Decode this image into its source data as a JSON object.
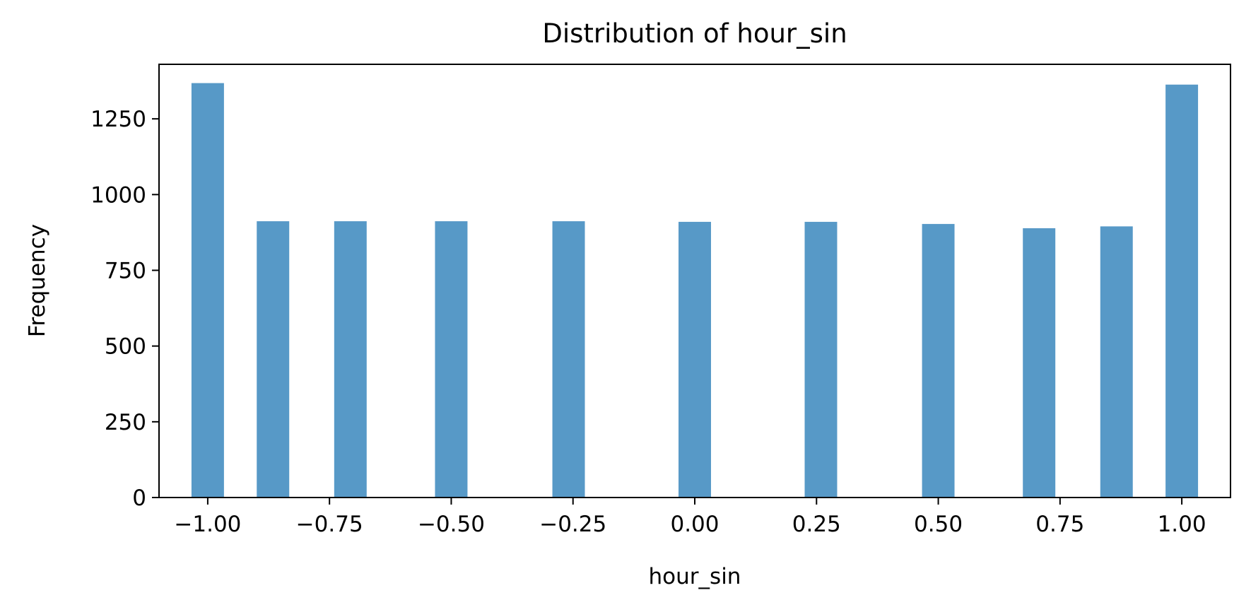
{
  "chart_data": {
    "type": "bar",
    "title": "Distribution of hour_sin",
    "xlabel": "hour_sin",
    "ylabel": "Frequency",
    "xlim": [
      -1.1,
      1.1
    ],
    "ylim": [
      0,
      1430
    ],
    "grid": false,
    "legend": "none",
    "bar_color": "#5799c7",
    "bin_width": 0.0667,
    "x_ticks": [
      {
        "value": -1.0,
        "label": "−1.00"
      },
      {
        "value": -0.75,
        "label": "−0.75"
      },
      {
        "value": -0.5,
        "label": "−0.50"
      },
      {
        "value": -0.25,
        "label": "−0.25"
      },
      {
        "value": 0.0,
        "label": "0.00"
      },
      {
        "value": 0.25,
        "label": "0.25"
      },
      {
        "value": 0.5,
        "label": "0.50"
      },
      {
        "value": 0.75,
        "label": "0.75"
      },
      {
        "value": 1.0,
        "label": "1.00"
      }
    ],
    "y_ticks": [
      {
        "value": 0,
        "label": "0"
      },
      {
        "value": 250,
        "label": "250"
      },
      {
        "value": 500,
        "label": "500"
      },
      {
        "value": 750,
        "label": "750"
      },
      {
        "value": 1000,
        "label": "1000"
      },
      {
        "value": 1250,
        "label": "1250"
      }
    ],
    "bars": [
      {
        "x": -1.0,
        "value": 1368
      },
      {
        "x": -0.866,
        "value": 912
      },
      {
        "x": -0.707,
        "value": 912
      },
      {
        "x": -0.5,
        "value": 912
      },
      {
        "x": -0.259,
        "value": 912
      },
      {
        "x": 0.0,
        "value": 910
      },
      {
        "x": 0.259,
        "value": 910
      },
      {
        "x": 0.5,
        "value": 903
      },
      {
        "x": 0.707,
        "value": 889
      },
      {
        "x": 0.866,
        "value": 895
      },
      {
        "x": 1.0,
        "value": 1363
      }
    ]
  }
}
